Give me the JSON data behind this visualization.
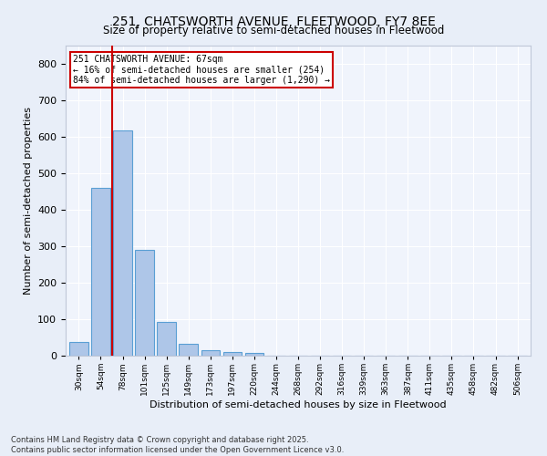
{
  "title_line1": "251, CHATSWORTH AVENUE, FLEETWOOD, FY7 8EE",
  "title_line2": "Size of property relative to semi-detached houses in Fleetwood",
  "xlabel": "Distribution of semi-detached houses by size in Fleetwood",
  "ylabel": "Number of semi-detached properties",
  "categories": [
    "30sqm",
    "54sqm",
    "78sqm",
    "101sqm",
    "125sqm",
    "149sqm",
    "173sqm",
    "197sqm",
    "220sqm",
    "244sqm",
    "268sqm",
    "292sqm",
    "316sqm",
    "339sqm",
    "363sqm",
    "387sqm",
    "411sqm",
    "435sqm",
    "458sqm",
    "482sqm",
    "506sqm"
  ],
  "values": [
    38,
    460,
    618,
    290,
    93,
    32,
    15,
    10,
    7,
    0,
    0,
    0,
    0,
    0,
    0,
    0,
    0,
    0,
    0,
    0,
    0
  ],
  "bar_color": "#aec6e8",
  "bar_edge_color": "#5a9fd4",
  "vline_x": 1.5,
  "vline_color": "#cc0000",
  "annotation_title": "251 CHATSWORTH AVENUE: 67sqm",
  "annotation_line2": "← 16% of semi-detached houses are smaller (254)",
  "annotation_line3": "84% of semi-detached houses are larger (1,290) →",
  "annotation_box_color": "#cc0000",
  "ylim": [
    0,
    850
  ],
  "yticks": [
    0,
    100,
    200,
    300,
    400,
    500,
    600,
    700,
    800
  ],
  "footnote1": "Contains HM Land Registry data © Crown copyright and database right 2025.",
  "footnote2": "Contains public sector information licensed under the Open Government Licence v3.0.",
  "bg_color": "#e8eef8",
  "plot_bg_color": "#f0f4fc"
}
